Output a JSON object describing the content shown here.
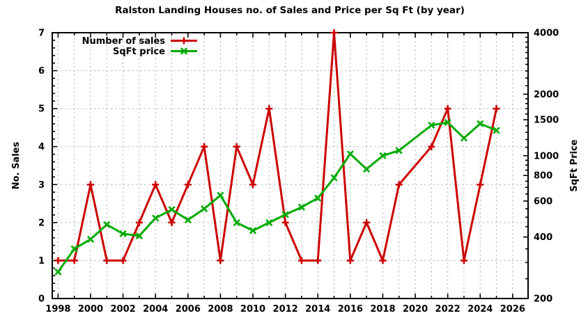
{
  "title": "Ralston Landing Houses no. of Sales and Price per Sq Ft (by year)",
  "colors": {
    "sales_red": "#cc0000",
    "price_green": "#00aa00",
    "grid_gray": "#b8b8b8",
    "frame_black": "#000000",
    "background": "#ffffff"
  },
  "legend": {
    "position": "top-left-inside",
    "entries": [
      {
        "label": "Number of sales",
        "color": "#cc0000",
        "marker": "plus"
      },
      {
        "label": "SqFt price",
        "color": "#00aa00",
        "marker": "cross"
      }
    ]
  },
  "chart_data": {
    "type": "line",
    "title": "Ralston Landing Houses no. of Sales and Price per Sq Ft (by year)",
    "xlabel": "",
    "grid": "on",
    "legend_position": "top-left-inside",
    "x_axis": {
      "min": 1997.64,
      "max": 2026.95,
      "tick_start": 1998,
      "tick_end": 2026,
      "tick_step": 2,
      "minor_step": 1,
      "tick_labels": [
        "1998",
        "2000",
        "2002",
        "2004",
        "2006",
        "2008",
        "2010",
        "2012",
        "2014",
        "2016",
        "2018",
        "2020",
        "2022",
        "2024",
        "2026"
      ]
    },
    "y_left_axis": {
      "label": "No. Sales",
      "min": 0,
      "max": 7,
      "tick_step": 1,
      "minor_step": 0.2,
      "ticks": [
        0,
        1,
        2,
        3,
        4,
        5,
        6,
        7
      ],
      "gridlines_at": [
        1,
        2,
        3,
        4,
        5,
        6
      ]
    },
    "y_right_axis": {
      "label": "SqFt Price",
      "scale": "log",
      "min": 200,
      "max": 4000,
      "ticks": [
        200,
        400,
        600,
        800,
        1000,
        1500,
        2000,
        4000
      ],
      "minor_ticks": [
        250,
        300,
        350,
        450,
        500,
        550,
        650,
        700,
        750,
        850,
        900,
        950,
        1100,
        1200,
        1300,
        1400,
        1600,
        1700,
        1800,
        1900,
        2200,
        2400,
        2600,
        2800,
        3000,
        3200,
        3400,
        3600,
        3800
      ]
    },
    "series": [
      {
        "name": "Number of sales",
        "y_axis": "left",
        "color": "#cc0000",
        "marker": "plus",
        "x": [
          1998,
          1999,
          2000,
          2001,
          2002,
          2003,
          2004,
          2005,
          2006,
          2007,
          2008,
          2009,
          2010,
          2011,
          2012,
          2013,
          2014,
          2015,
          2016,
          2017,
          2018,
          2019,
          2021,
          2022,
          2023,
          2024,
          2025
        ],
        "values": [
          1,
          1,
          3,
          1,
          1,
          2,
          3,
          2,
          3,
          4,
          1,
          4,
          3,
          5,
          2,
          1,
          1,
          7,
          1,
          2,
          1,
          3,
          4,
          5,
          1,
          3,
          5
        ]
      },
      {
        "name": "SqFt price",
        "y_axis": "right",
        "color": "#00aa00",
        "marker": "cross",
        "x": [
          1998,
          1999,
          2000,
          2001,
          2002,
          2003,
          2004,
          2005,
          2006,
          2007,
          2008,
          2009,
          2010,
          2011,
          2012,
          2013,
          2014,
          2015,
          2016,
          2017,
          2018,
          2019,
          2021,
          2022,
          2023,
          2024,
          2025
        ],
        "values": [
          270,
          350,
          390,
          460,
          415,
          405,
          495,
          545,
          485,
          550,
          640,
          470,
          430,
          470,
          515,
          560,
          620,
          780,
          1020,
          860,
          1000,
          1060,
          1410,
          1455,
          1220,
          1435,
          1330
        ]
      }
    ],
    "note_missing_year": 2020
  }
}
